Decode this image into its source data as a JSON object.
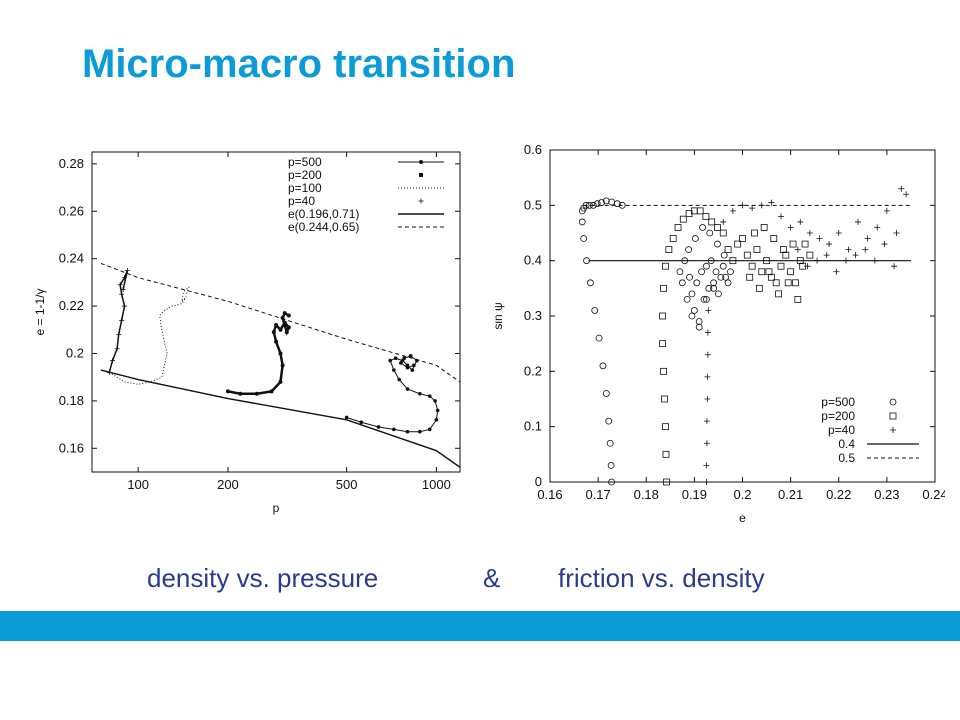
{
  "slide": {
    "title": "Micro-macro transition",
    "caption_left": "density vs. pressure",
    "caption_amp": "&",
    "caption_right": "friction vs. density",
    "accent_color": "#0b9bd6",
    "caption_color": "#2a3b8f"
  },
  "chart_data": [
    {
      "type": "line",
      "xlabel": "p",
      "ylabel": "e = 1-1/γ",
      "xscale": "log",
      "xlim": [
        70,
        1200
      ],
      "ylim": [
        0.15,
        0.285
      ],
      "xticks": [
        100,
        200,
        500,
        1000
      ],
      "xtick_labels": [
        "100",
        "200",
        "500",
        "1000"
      ],
      "yticks": [
        0.16,
        0.18,
        0.2,
        0.22,
        0.24,
        0.26,
        0.28
      ],
      "ytick_labels": [
        "0.16",
        "0.18",
        "0.2",
        "0.22",
        "0.24",
        "0.26",
        "0.28"
      ],
      "legend_position": "top-right",
      "series": [
        {
          "name": "p=500",
          "style": "dot-line",
          "x": [
            500,
            560,
            640,
            720,
            800,
            880,
            950,
            1000,
            1010,
            990,
            950,
            880,
            800,
            750,
            720,
            700,
            730,
            770,
            800,
            830,
            860,
            820,
            780,
            760,
            800,
            840
          ],
          "y": [
            0.173,
            0.171,
            0.169,
            0.168,
            0.167,
            0.167,
            0.168,
            0.172,
            0.176,
            0.18,
            0.182,
            0.183,
            0.185,
            0.189,
            0.193,
            0.197,
            0.198,
            0.197,
            0.195,
            0.193,
            0.197,
            0.199,
            0.198,
            0.196,
            0.194,
            0.195
          ]
        },
        {
          "name": "p=200",
          "style": "dense-dots",
          "x": [
            200,
            220,
            250,
            280,
            300,
            305,
            300,
            290,
            285,
            290,
            300,
            310,
            320,
            315,
            305,
            310,
            320
          ],
          "y": [
            0.184,
            0.183,
            0.183,
            0.184,
            0.188,
            0.195,
            0.2,
            0.205,
            0.209,
            0.212,
            0.21,
            0.213,
            0.211,
            0.209,
            0.215,
            0.217,
            0.216
          ]
        },
        {
          "name": "p=100",
          "style": "dotted",
          "x": [
            80,
            90,
            100,
            110,
            120,
            125,
            120,
            118,
            122,
            130,
            140,
            145,
            140,
            142,
            148,
            145
          ],
          "y": [
            0.192,
            0.188,
            0.187,
            0.188,
            0.19,
            0.2,
            0.21,
            0.216,
            0.218,
            0.22,
            0.221,
            0.224,
            0.222,
            0.226,
            0.228,
            0.225
          ]
        },
        {
          "name": "p=40",
          "style": "plus",
          "x": [
            80,
            82,
            85,
            86,
            88,
            90,
            88,
            87,
            90,
            92,
            89
          ],
          "y": [
            0.192,
            0.197,
            0.202,
            0.208,
            0.214,
            0.22,
            0.225,
            0.229,
            0.232,
            0.235,
            0.227
          ]
        },
        {
          "name": "e(0.196,0.71)",
          "style": "solid",
          "x": [
            75,
            100,
            200,
            500,
            1000,
            1200
          ],
          "y": [
            0.193,
            0.189,
            0.181,
            0.172,
            0.159,
            0.152
          ]
        },
        {
          "name": "e(0.244,0.65)",
          "style": "dashed",
          "x": [
            75,
            100,
            200,
            500,
            1000,
            1200
          ],
          "y": [
            0.238,
            0.232,
            0.222,
            0.206,
            0.195,
            0.188
          ]
        }
      ]
    },
    {
      "type": "scatter",
      "xlabel": "e",
      "ylabel": "sin ψ",
      "xlim": [
        0.16,
        0.24
      ],
      "ylim": [
        0,
        0.6
      ],
      "xticks": [
        0.16,
        0.17,
        0.18,
        0.19,
        0.2,
        0.21,
        0.22,
        0.23,
        0.24
      ],
      "xtick_labels": [
        "0.16",
        "0.17",
        "0.18",
        "0.19",
        "0.2",
        "0.21",
        "0.22",
        "0.23",
        "0.24"
      ],
      "yticks": [
        0,
        0.1,
        0.2,
        0.3,
        0.4,
        0.5,
        0.6
      ],
      "ytick_labels": [
        "0",
        "0.1",
        "0.2",
        "0.3",
        "0.4",
        "0.5",
        "0.6"
      ],
      "legend_position": "bottom-right",
      "series": [
        {
          "name": "p=500",
          "marker": "circle",
          "x": [
            0.1728,
            0.1727,
            0.1725,
            0.1722,
            0.1717,
            0.171,
            0.1702,
            0.1693,
            0.1684,
            0.1676,
            0.167,
            0.1667,
            0.1667,
            0.167,
            0.1675,
            0.1682,
            0.169,
            0.1698,
            0.1707,
            0.1717,
            0.1728,
            0.174,
            0.175,
            0.187,
            0.1875,
            0.188,
            0.1885,
            0.189,
            0.1895,
            0.19,
            0.1905,
            0.191,
            0.1915,
            0.192,
            0.1925,
            0.193,
            0.1935,
            0.194,
            0.1945,
            0.195,
            0.1955,
            0.196,
            0.1965,
            0.197,
            0.1975,
            0.1888,
            0.1902,
            0.1917,
            0.1932,
            0.1948,
            0.1962,
            0.1895,
            0.191,
            0.1925,
            0.194
          ],
          "y": [
            0.0,
            0.03,
            0.07,
            0.11,
            0.16,
            0.21,
            0.26,
            0.31,
            0.36,
            0.4,
            0.44,
            0.47,
            0.49,
            0.495,
            0.5,
            0.5,
            0.5,
            0.503,
            0.505,
            0.508,
            0.506,
            0.503,
            0.5,
            0.38,
            0.36,
            0.4,
            0.33,
            0.37,
            0.34,
            0.31,
            0.36,
            0.29,
            0.38,
            0.33,
            0.39,
            0.35,
            0.4,
            0.36,
            0.38,
            0.34,
            0.37,
            0.39,
            0.37,
            0.36,
            0.38,
            0.42,
            0.44,
            0.46,
            0.45,
            0.43,
            0.41,
            0.3,
            0.28,
            0.33,
            0.35
          ]
        },
        {
          "name": "p=200",
          "marker": "square",
          "x": [
            0.1842,
            0.1841,
            0.184,
            0.1838,
            0.1836,
            0.1834,
            0.1834,
            0.1836,
            0.184,
            0.1847,
            0.1856,
            0.1866,
            0.1877,
            0.1889,
            0.19,
            0.1912,
            0.1924,
            0.1936,
            0.1948,
            0.196,
            0.197,
            0.198,
            0.199,
            0.2,
            0.201,
            0.202,
            0.203,
            0.204,
            0.205,
            0.206,
            0.207,
            0.208,
            0.209,
            0.21,
            0.211,
            0.212,
            0.213,
            0.214,
            0.2015,
            0.2035,
            0.2055,
            0.2075,
            0.2095,
            0.2115,
            0.2025,
            0.2045,
            0.2065,
            0.2085,
            0.2105,
            0.2125
          ],
          "y": [
            0.0,
            0.05,
            0.1,
            0.15,
            0.2,
            0.25,
            0.3,
            0.35,
            0.39,
            0.42,
            0.44,
            0.46,
            0.475,
            0.485,
            0.49,
            0.49,
            0.48,
            0.47,
            0.46,
            0.45,
            0.42,
            0.4,
            0.43,
            0.44,
            0.41,
            0.39,
            0.42,
            0.38,
            0.4,
            0.37,
            0.36,
            0.39,
            0.41,
            0.38,
            0.36,
            0.4,
            0.43,
            0.41,
            0.37,
            0.35,
            0.38,
            0.34,
            0.36,
            0.33,
            0.45,
            0.46,
            0.44,
            0.42,
            0.43,
            0.39
          ]
        },
        {
          "name": "p=40",
          "marker": "plus",
          "x": [
            0.1925,
            0.1925,
            0.1926,
            0.1926,
            0.1927,
            0.1927,
            0.1928,
            0.1928,
            0.1929,
            0.196,
            0.198,
            0.2,
            0.202,
            0.204,
            0.206,
            0.208,
            0.21,
            0.212,
            0.214,
            0.216,
            0.218,
            0.22,
            0.222,
            0.224,
            0.226,
            0.228,
            0.23,
            0.232,
            0.234,
            0.2115,
            0.2135,
            0.2155,
            0.2175,
            0.2195,
            0.2215,
            0.2235,
            0.2255,
            0.2275,
            0.2295,
            0.2315,
            0.233
          ],
          "y": [
            0.0,
            0.03,
            0.07,
            0.11,
            0.15,
            0.19,
            0.23,
            0.27,
            0.31,
            0.47,
            0.49,
            0.5,
            0.495,
            0.5,
            0.505,
            0.48,
            0.46,
            0.47,
            0.45,
            0.44,
            0.43,
            0.45,
            0.42,
            0.47,
            0.44,
            0.46,
            0.49,
            0.45,
            0.52,
            0.42,
            0.39,
            0.4,
            0.41,
            0.38,
            0.4,
            0.41,
            0.42,
            0.4,
            0.43,
            0.39,
            0.53
          ]
        },
        {
          "name": "0.4",
          "style": "solid",
          "x": [
            0.168,
            0.235
          ],
          "y": [
            0.4,
            0.4
          ]
        },
        {
          "name": "0.5",
          "style": "dashed",
          "x": [
            0.167,
            0.235
          ],
          "y": [
            0.5,
            0.5
          ]
        }
      ]
    }
  ]
}
